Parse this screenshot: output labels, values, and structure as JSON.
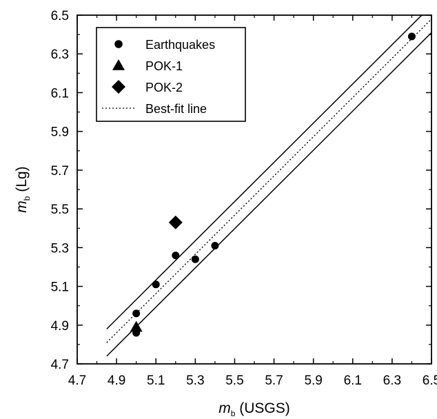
{
  "chart_data": {
    "type": "scatter",
    "xlabel": "m_b (USGS)",
    "ylabel": "m_b (Lg)",
    "xlim": [
      4.7,
      6.5
    ],
    "ylim": [
      4.7,
      6.5
    ],
    "xticks": [
      "4.7",
      "4.9",
      "5.1",
      "5.3",
      "5.5",
      "5.7",
      "5.9",
      "6.1",
      "6.3",
      "6.5"
    ],
    "yticks": [
      "4.7",
      "4.9",
      "5.1",
      "5.3",
      "5.5",
      "5.7",
      "5.9",
      "6.1",
      "6.3",
      "6.5"
    ],
    "series": [
      {
        "name": "Earthquakes",
        "marker": "circle",
        "points": [
          {
            "x": 5.0,
            "y": 4.96
          },
          {
            "x": 5.0,
            "y": 4.86
          },
          {
            "x": 5.1,
            "y": 5.11
          },
          {
            "x": 5.2,
            "y": 5.26
          },
          {
            "x": 5.3,
            "y": 5.24
          },
          {
            "x": 5.4,
            "y": 5.31
          },
          {
            "x": 6.4,
            "y": 6.39
          }
        ]
      },
      {
        "name": "POK-1",
        "marker": "triangle",
        "points": [
          {
            "x": 5.0,
            "y": 4.89
          }
        ]
      },
      {
        "name": "POK-2",
        "marker": "diamond",
        "points": [
          {
            "x": 5.2,
            "y": 5.43
          }
        ]
      }
    ],
    "lines": [
      {
        "name": "Best-fit line",
        "style": "dotted",
        "from": {
          "x": 4.85,
          "y": 4.81
        },
        "to": {
          "x": 6.5,
          "y": 6.48
        }
      },
      {
        "name": "",
        "style": "solid",
        "from": {
          "x": 4.85,
          "y": 4.88
        },
        "to": {
          "x": 6.5,
          "y": 6.55
        }
      },
      {
        "name": "",
        "style": "solid",
        "from": {
          "x": 4.85,
          "y": 4.74
        },
        "to": {
          "x": 6.5,
          "y": 6.41
        }
      }
    ],
    "legend": {
      "position": "top-left",
      "entries": [
        {
          "label": "Earthquakes",
          "marker": "circle"
        },
        {
          "label": "POK-1",
          "marker": "triangle"
        },
        {
          "label": "POK-2",
          "marker": "diamond"
        },
        {
          "label": "Best-fit line",
          "marker": "dotted-line"
        }
      ]
    },
    "grid": false
  }
}
